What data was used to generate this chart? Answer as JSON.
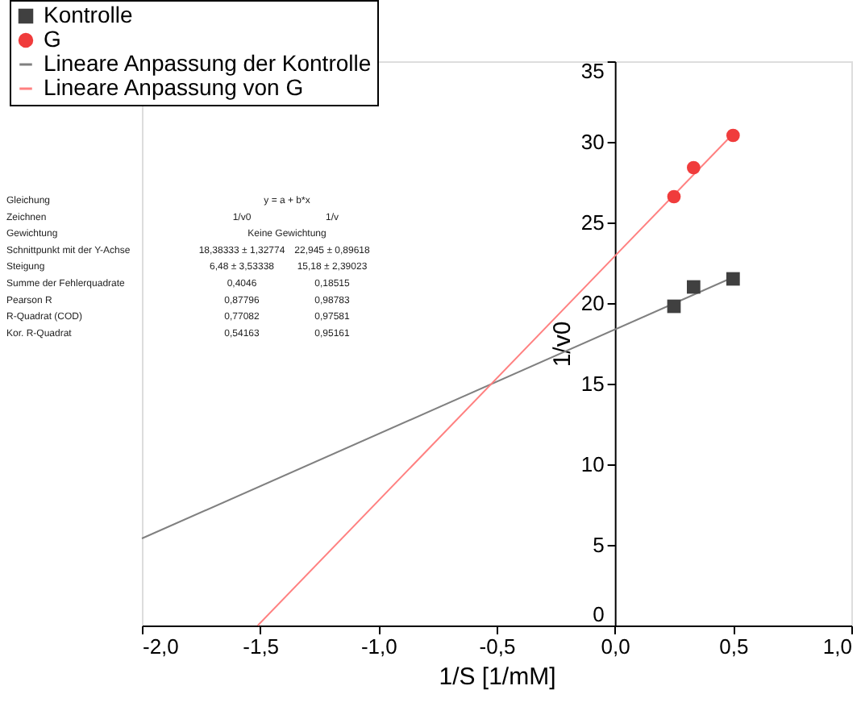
{
  "chart_data": {
    "type": "scatter",
    "xlabel": "1/S [1/mM]",
    "ylabel": "1/v0",
    "xlim": [
      -2,
      1
    ],
    "xticks": [
      {
        "value": -2,
        "label": "-2,0"
      },
      {
        "value": -1.5,
        "label": "-1,5"
      },
      {
        "value": -1,
        "label": "-1,0"
      },
      {
        "value": -0.5,
        "label": "-0,5"
      },
      {
        "value": 0,
        "label": "0,0"
      },
      {
        "value": 0.5,
        "label": "0,5"
      },
      {
        "value": 1,
        "label": "1,0"
      }
    ],
    "ylim": [
      0,
      35
    ],
    "yticks": [
      0,
      5,
      10,
      15,
      20,
      25,
      30,
      35
    ],
    "grid": false,
    "legend": "top left",
    "series": [
      {
        "name": "Kontrolle",
        "marker": "square",
        "color": "#404040",
        "x": [
          0.25,
          0.333,
          0.5
        ],
        "values": [
          19.8,
          21.0,
          21.5
        ]
      },
      {
        "name": "G",
        "marker": "circle",
        "color": "#f03c3c",
        "x": [
          0.25,
          0.333,
          0.5
        ],
        "values": [
          26.6,
          28.4,
          30.4
        ]
      },
      {
        "name": "Lineare Anpassung der Kontrolle",
        "type": "line",
        "marker": "none",
        "color": "#808080",
        "x": [
          -2,
          0.5
        ],
        "values": [
          5.4,
          21.6
        ]
      },
      {
        "name": "Lineare Anpassung von G",
        "type": "line",
        "marker": "none",
        "color": "#ff8080",
        "x": [
          -1.51,
          0.5
        ],
        "values": [
          0,
          30.5
        ]
      }
    ],
    "annotations": [
      "Gleichung",
      "y = a + b*x",
      "Zeichnen",
      "1/v0",
      "1/v",
      "Gewichtung",
      "Keine Gewichtung",
      "Schnittpunkt mit der Y-Achse",
      "18,38333 ± 1,32774",
      "22,945 ± 0,89618",
      "Steigung",
      "6,48 ± 3,53338",
      "15,18 ± 2,39023",
      "Summe der Fehlerquadrate",
      "0,4046",
      "0,18515",
      "Pearson R",
      "0,87796",
      "0,98783",
      "R-Quadrat (COD)",
      "0,77082",
      "0,97581",
      "Kor. R-Quadrat",
      "0,54163",
      "0,95161"
    ]
  }
}
